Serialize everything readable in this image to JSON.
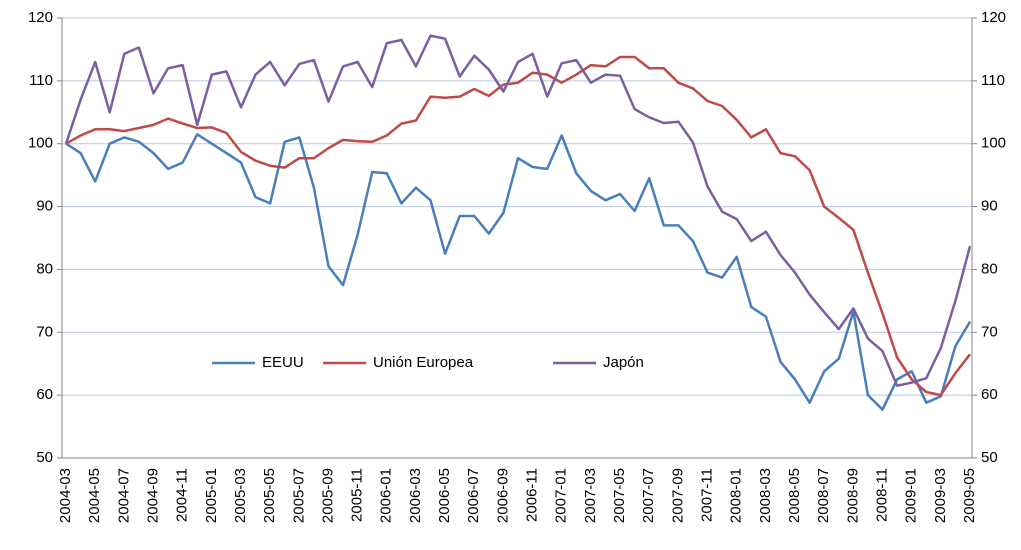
{
  "chart_data": {
    "type": "line",
    "categories": [
      "2004-03",
      null,
      "2004-05",
      null,
      "2004-07",
      null,
      "2004-09",
      null,
      "2004-11",
      null,
      "2005-01",
      null,
      "2005-03",
      null,
      "2005-05",
      null,
      "2005-07",
      null,
      "2005-09",
      null,
      "2005-11",
      null,
      "2006-01",
      null,
      "2006-03",
      null,
      "2006-05",
      null,
      "2006-07",
      null,
      "2006-09",
      null,
      "2006-11",
      null,
      "2007-01",
      null,
      "2007-03",
      null,
      "2007-05",
      null,
      "2007-07",
      null,
      "2007-09",
      null,
      "2007-11",
      null,
      "2008-01",
      null,
      "2008-03",
      null,
      "2008-05",
      null,
      "2008-07",
      null,
      "2008-09",
      null,
      "2008-11",
      null,
      "2009-01",
      null,
      "2009-03",
      null,
      "2009-05"
    ],
    "series": [
      {
        "name": "EEUU",
        "color": "#4a7ebb",
        "values": [
          100,
          98.5,
          94,
          100,
          101,
          100.3,
          98.5,
          96,
          97,
          101.5,
          100,
          98.5,
          97,
          91.5,
          90.5,
          100.3,
          101,
          93,
          80.5,
          77.5,
          85.5,
          95.5,
          95.3,
          90.5,
          93,
          91,
          82.5,
          88.5,
          88.5,
          85.7,
          89,
          97.7,
          96.3,
          96,
          101.3,
          95.3,
          92.5,
          91,
          92,
          89.3,
          94.5,
          87,
          87,
          84.5,
          79.5,
          78.7,
          82,
          74,
          72.5,
          65.3,
          62.5,
          58.8,
          63.8,
          65.8,
          73.3,
          60,
          57.7,
          62.5,
          63.8,
          58.8,
          59.8,
          67.8,
          71.7
        ]
      },
      {
        "name": "Unión Europea",
        "color": "#be4b48",
        "values": [
          100,
          101.3,
          102.3,
          102.3,
          102,
          102.5,
          103,
          104,
          103.2,
          102.5,
          102.6,
          101.7,
          98.7,
          97.3,
          96.5,
          96.2,
          97.7,
          97.7,
          99.3,
          100.6,
          100.4,
          100.3,
          101.3,
          103.2,
          103.7,
          107.5,
          107.3,
          107.5,
          108.7,
          107.6,
          109.4,
          109.7,
          111.3,
          111,
          109.7,
          111,
          112.5,
          112.3,
          113.8,
          113.8,
          112,
          112,
          109.7,
          108.8,
          106.8,
          106,
          103.8,
          101,
          102.3,
          98.5,
          98,
          95.8,
          90,
          88.2,
          86.3,
          79.5,
          73,
          66,
          62.5,
          60.5,
          60,
          63.5,
          66.5
        ]
      },
      {
        "name": "Japón",
        "color": "#7d5fa0",
        "values": [
          100,
          107,
          113,
          105,
          114.3,
          115.3,
          108,
          112,
          112.5,
          103,
          111,
          111.5,
          105.8,
          111,
          113,
          109.3,
          112.7,
          113.3,
          106.7,
          112.3,
          113,
          109,
          116,
          116.5,
          112.3,
          117.2,
          116.7,
          110.7,
          114,
          111.8,
          108.3,
          113,
          114.3,
          107.5,
          112.8,
          113.3,
          109.7,
          111,
          110.8,
          105.5,
          104.2,
          103.3,
          103.5,
          100.2,
          93.2,
          89.2,
          88,
          84.5,
          86,
          82.3,
          79.5,
          76,
          73.2,
          70.5,
          73.8,
          69,
          67,
          61.5,
          62,
          62.7,
          67.5,
          75,
          83.7
        ]
      }
    ],
    "ylim": [
      50,
      120
    ],
    "yticks": [
      50,
      60,
      70,
      80,
      90,
      100,
      110,
      120
    ],
    "y2lim": [
      50,
      120
    ],
    "y2ticks": [
      50,
      60,
      70,
      80,
      90,
      100,
      110,
      120
    ],
    "grid": true,
    "legend": "inside"
  }
}
